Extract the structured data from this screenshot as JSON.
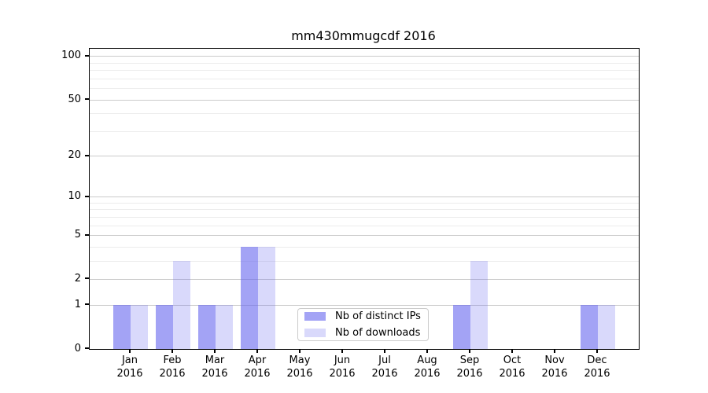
{
  "chart_data": {
    "type": "bar",
    "title": "mm430mmugcdf 2016",
    "categories": [
      "Jan",
      "Feb",
      "Mar",
      "Apr",
      "May",
      "Jun",
      "Jul",
      "Aug",
      "Sep",
      "Oct",
      "Nov",
      "Dec"
    ],
    "category_sublabel": "2016",
    "series": [
      {
        "name": "Nb of distinct IPs",
        "color": "rgba(102,102,238,0.60)",
        "values": [
          1,
          1,
          1,
          4,
          0,
          0,
          0,
          0,
          1,
          0,
          0,
          1
        ]
      },
      {
        "name": "Nb of downloads",
        "color": "rgba(102,102,238,0.25)",
        "values": [
          1,
          3,
          1,
          4,
          0,
          0,
          0,
          0,
          3,
          0,
          0,
          1
        ]
      }
    ],
    "yscale": "log1p",
    "ylim": [
      0,
      113
    ],
    "yticks": [
      0,
      1,
      2,
      5,
      10,
      20,
      50,
      100
    ],
    "minor_gridlines": [
      3,
      4,
      6,
      7,
      8,
      9,
      30,
      40,
      60,
      70,
      80,
      90
    ],
    "grid": "on",
    "legend_position": "lower-center-inside",
    "accent_color": "#6666ee",
    "grid_major_color": "#cbcbcb",
    "grid_minor_color": "#ececec"
  }
}
